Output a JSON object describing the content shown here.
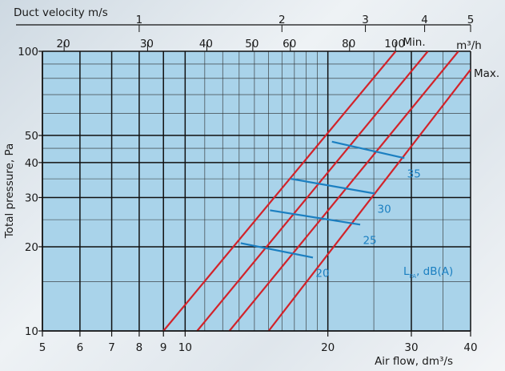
{
  "chart_data": {
    "type": "line",
    "xlabel": "Air flow, dm³/s",
    "ylabel": "Total pressure, Pa",
    "x_scale": "log",
    "y_scale": "log",
    "xlim": [
      5,
      40
    ],
    "ylim": [
      10,
      100
    ],
    "x_ticks": [
      5,
      6,
      7,
      8,
      9,
      10,
      20,
      30,
      40
    ],
    "y_ticks": [
      10,
      20,
      30,
      40,
      50,
      100
    ],
    "top_axis_1": {
      "label": "Duct velocity m/s",
      "ticks": [
        {
          "label": "1",
          "x": 8
        },
        {
          "label": "2",
          "x": 16
        },
        {
          "label": "3",
          "x": 24
        },
        {
          "label": "4",
          "x": 32
        },
        {
          "label": "5",
          "x": 40
        }
      ]
    },
    "top_axis_2": {
      "unit": "m³/h",
      "ticks": [
        {
          "label": "20",
          "x": 5.556
        },
        {
          "label": "30",
          "x": 8.333
        },
        {
          "label": "40",
          "x": 11.111
        },
        {
          "label": "50",
          "x": 13.889
        },
        {
          "label": "60",
          "x": 16.667
        },
        {
          "label": "80",
          "x": 22.222
        },
        {
          "label": "100",
          "x": 27.778
        }
      ]
    },
    "pressure_lines": [
      {
        "name": "Min.",
        "points": [
          [
            9.0,
            10
          ],
          [
            27.8,
            100
          ]
        ]
      },
      {
        "name": "",
        "points": [
          [
            10.6,
            10
          ],
          [
            32.5,
            100
          ]
        ]
      },
      {
        "name": "",
        "points": [
          [
            12.4,
            10
          ],
          [
            37.7,
            100
          ]
        ]
      },
      {
        "name": "Max.",
        "points": [
          [
            15.0,
            10
          ],
          [
            40.0,
            86
          ]
        ]
      }
    ],
    "sound_lines": [
      {
        "name": "20",
        "points": [
          [
            13.1,
            20.6
          ],
          [
            18.6,
            18.3
          ]
        ]
      },
      {
        "name": "25",
        "points": [
          [
            15.1,
            27.0
          ],
          [
            23.4,
            24.0
          ]
        ]
      },
      {
        "name": "30",
        "points": [
          [
            16.7,
            35.0
          ],
          [
            25.1,
            31.0
          ]
        ]
      },
      {
        "name": "35",
        "points": [
          [
            20.4,
            47.5
          ],
          [
            29.0,
            41.5
          ]
        ]
      }
    ],
    "annotation": {
      "main": "L",
      "sub": "PA",
      "rest": ", dB(A)"
    },
    "colors": {
      "red": "#d2232a",
      "blue": "#1b7fc1",
      "plot_bg": "#a9d3ea"
    }
  }
}
